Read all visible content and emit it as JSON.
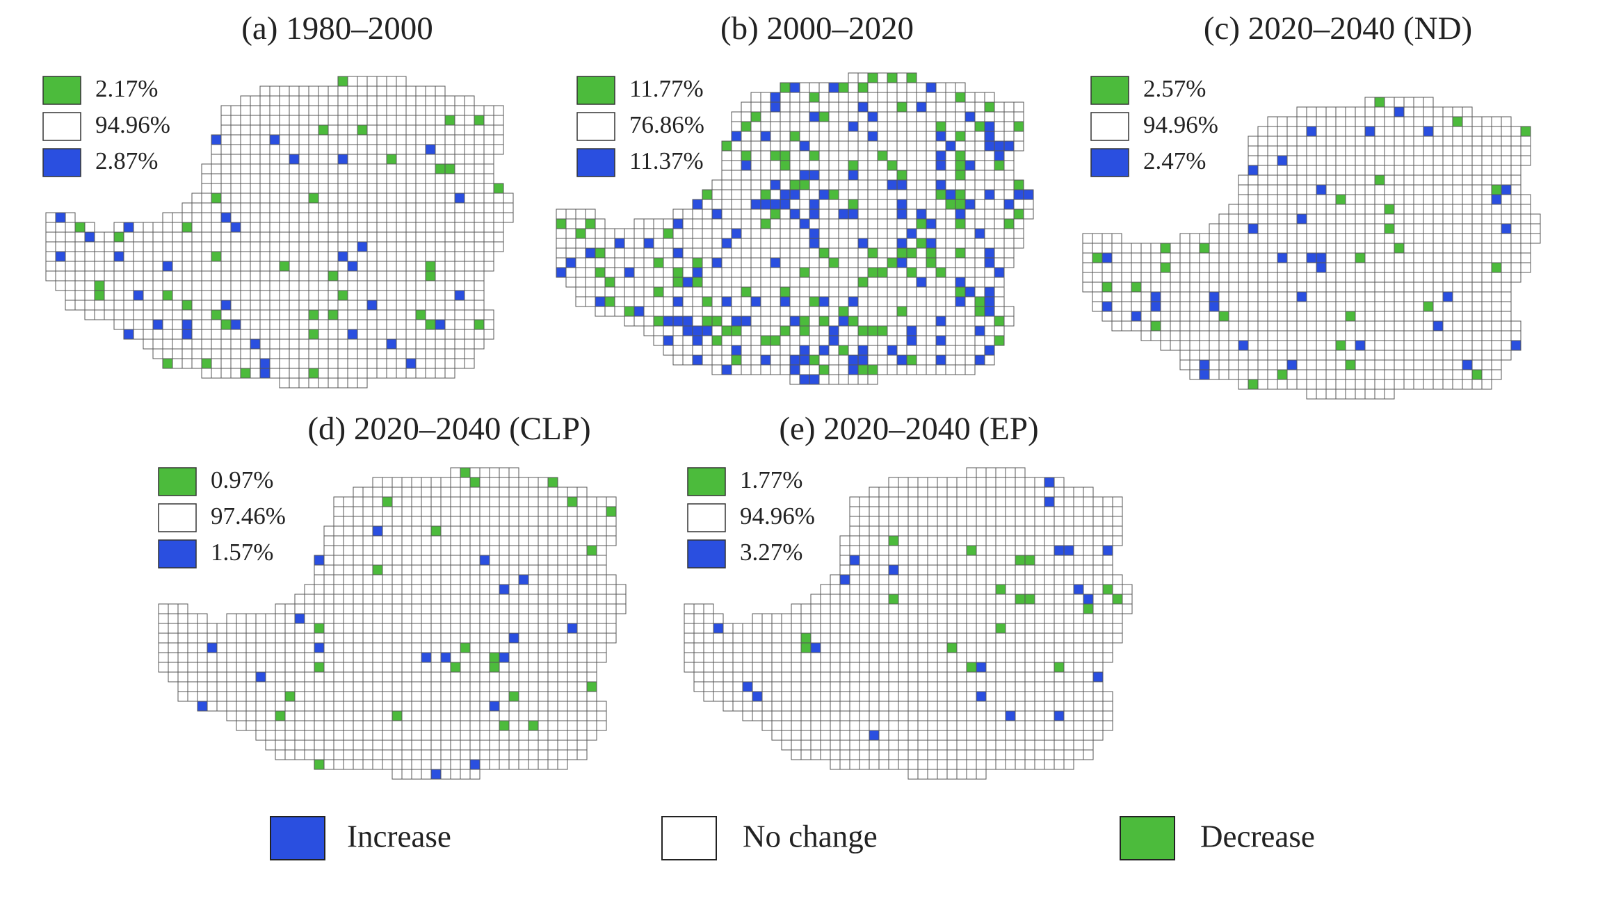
{
  "panels": [
    {
      "title": "(a) 1980–2000",
      "legend": [
        "2.17%",
        "94.96%",
        "2.87%"
      ]
    },
    {
      "title": "(b) 2000–2020",
      "legend": [
        "11.77%",
        "76.86%",
        "11.37%"
      ]
    },
    {
      "title": "(c) 2020–2040 (ND)",
      "legend": [
        "2.57%",
        "94.96%",
        "2.47%"
      ]
    },
    {
      "title": "(d) 2020–2040 (CLP)",
      "legend": [
        "0.97%",
        "97.46%",
        "1.57%"
      ]
    },
    {
      "title": "(e) 2020–2040 (EP)",
      "legend": [
        "1.77%",
        "94.96%",
        "3.27%"
      ]
    }
  ],
  "legend": [
    "Increase",
    "No change",
    "Decrease"
  ]
}
